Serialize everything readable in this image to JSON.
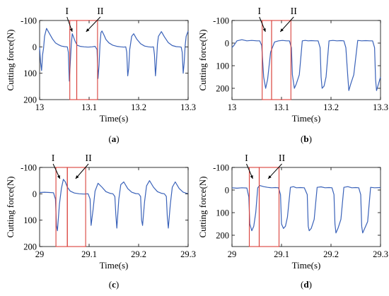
{
  "chart_data": [
    {
      "type": "line",
      "panel_label": "(a)",
      "xlabel": "Time(s)",
      "ylabel": "Cutting force(N)",
      "xlim": [
        13,
        13.3
      ],
      "ylim": [
        -100,
        200
      ],
      "y_inverted": true,
      "x_ticks": [
        "13",
        "13.1",
        "13.2",
        "13.3"
      ],
      "x_tick_values": [
        13,
        13.1,
        13.2,
        13.3
      ],
      "y_ticks": [
        "-100",
        "0",
        "100",
        "200"
      ],
      "y_tick_values": [
        -100,
        0,
        100,
        200
      ],
      "regions": [
        {
          "label": "I",
          "x_start": 13.061,
          "x_end": 13.075
        },
        {
          "label": "II",
          "x_start": 13.075,
          "x_end": 13.117
        }
      ],
      "series": [
        {
          "color": "#3a62b9",
          "x": [
            13.0,
            13.002,
            13.004,
            13.006,
            13.008,
            13.01,
            13.014,
            13.02,
            13.026,
            13.032,
            13.038,
            13.044,
            13.05,
            13.056,
            13.058,
            13.06,
            13.062,
            13.064,
            13.066,
            13.068,
            13.072,
            13.076,
            13.082,
            13.09,
            13.098,
            13.106,
            13.112,
            13.116,
            13.118,
            13.12,
            13.122,
            13.124,
            13.126,
            13.13,
            13.134,
            13.14,
            13.148,
            13.156,
            13.164,
            13.17,
            13.174,
            13.176,
            13.178,
            13.18,
            13.182,
            13.186,
            13.19,
            13.196,
            13.204,
            13.212,
            13.22,
            13.226,
            13.23,
            13.232,
            13.234,
            13.236,
            13.238,
            13.24,
            13.246,
            13.252,
            13.26,
            13.268,
            13.276,
            13.282,
            13.286,
            13.288,
            13.29,
            13.292,
            13.294,
            13.296,
            13.3
          ],
          "y": [
            2,
            60,
            90,
            30,
            5,
            -40,
            -70,
            -50,
            -30,
            -15,
            -8,
            -3,
            -1,
            0,
            20,
            130,
            60,
            -10,
            -50,
            -40,
            -20,
            -6,
            -2,
            0,
            1,
            0,
            -2,
            10,
            120,
            70,
            -10,
            -55,
            -60,
            -45,
            -28,
            -15,
            -6,
            -2,
            0,
            1,
            0,
            20,
            110,
            80,
            10,
            -40,
            -50,
            -30,
            -12,
            -3,
            0,
            1,
            0,
            30,
            110,
            60,
            -10,
            -40,
            -58,
            -38,
            -16,
            -5,
            -1,
            0,
            1,
            20,
            100,
            60,
            -5,
            -40,
            -60
          ]
        }
      ]
    },
    {
      "type": "line",
      "panel_label": "(b)",
      "xlabel": "Time(s)",
      "ylabel": "Cutting force(N)",
      "xlim": [
        13,
        13.3
      ],
      "ylim": [
        -100,
        250
      ],
      "y_inverted": true,
      "x_ticks": [
        "13",
        "13.1",
        "13.2",
        "13.3"
      ],
      "x_tick_values": [
        13,
        13.1,
        13.2,
        13.3
      ],
      "y_ticks": [
        "-100",
        "0",
        "100",
        "200"
      ],
      "y_tick_values": [
        -100,
        0,
        100,
        200
      ],
      "regions": [
        {
          "label": "I",
          "x_start": 13.061,
          "x_end": 13.08
        },
        {
          "label": "II",
          "x_start": 13.08,
          "x_end": 13.119
        }
      ],
      "series": [
        {
          "color": "#3a62b9",
          "x": [
            13.0,
            13.004,
            13.01,
            13.02,
            13.03,
            13.04,
            13.05,
            13.056,
            13.06,
            13.064,
            13.068,
            13.072,
            13.078,
            13.086,
            13.094,
            13.102,
            13.11,
            13.116,
            13.12,
            13.122,
            13.126,
            13.13,
            13.136,
            13.142,
            13.148,
            13.154,
            13.16,
            13.168,
            13.174,
            13.178,
            13.18,
            13.182,
            13.186,
            13.19,
            13.196,
            13.204,
            13.212,
            13.22,
            13.226,
            13.23,
            13.234,
            13.236,
            13.24,
            13.246,
            13.254,
            13.262,
            13.27,
            13.278,
            13.284,
            13.288,
            13.29,
            13.292,
            13.296,
            13.3
          ],
          "y": [
            20,
            10,
            -10,
            -15,
            -10,
            -12,
            -10,
            -10,
            10,
            150,
            200,
            160,
            40,
            -5,
            -10,
            -12,
            -10,
            -10,
            20,
            140,
            200,
            180,
            140,
            -10,
            -12,
            -10,
            -11,
            -10,
            -10,
            20,
            150,
            200,
            190,
            150,
            -10,
            -12,
            -10,
            -11,
            -10,
            20,
            150,
            210,
            180,
            140,
            -12,
            -10,
            -11,
            -10,
            -10,
            20,
            160,
            210,
            180,
            150
          ]
        }
      ]
    },
    {
      "type": "line",
      "panel_label": "(c)",
      "xlabel": "Time(s)",
      "ylabel": "Cutting force(N)",
      "xlim": [
        29,
        29.3
      ],
      "ylim": [
        -100,
        200
      ],
      "y_inverted": true,
      "x_ticks": [
        "29",
        "29.1",
        "29.2",
        "29.3"
      ],
      "x_tick_values": [
        29,
        29.1,
        29.2,
        29.3
      ],
      "y_ticks": [
        "-100",
        "0",
        "100",
        "200"
      ],
      "y_tick_values": [
        -100,
        0,
        100,
        200
      ],
      "regions": [
        {
          "label": "I",
          "x_start": 29.033,
          "x_end": 29.056
        },
        {
          "label": "II",
          "x_start": 29.056,
          "x_end": 29.093
        }
      ],
      "series": [
        {
          "color": "#3a62b9",
          "x": [
            29.0,
            29.01,
            29.02,
            29.028,
            29.032,
            29.034,
            29.036,
            29.04,
            29.044,
            29.048,
            29.052,
            29.056,
            29.062,
            29.07,
            29.08,
            29.09,
            29.098,
            29.102,
            29.104,
            29.108,
            29.112,
            29.118,
            29.126,
            29.134,
            29.142,
            29.148,
            29.152,
            29.154,
            29.156,
            29.16,
            29.164,
            29.17,
            29.178,
            29.186,
            29.194,
            29.2,
            29.204,
            29.206,
            29.208,
            29.212,
            29.216,
            29.222,
            29.23,
            29.238,
            29.246,
            29.252,
            29.256,
            29.258,
            29.26,
            29.264,
            29.268,
            29.274,
            29.282,
            29.29,
            29.3
          ],
          "y": [
            -5,
            -6,
            -5,
            -4,
            20,
            120,
            140,
            40,
            -20,
            -55,
            -45,
            -25,
            -10,
            -3,
            0,
            1,
            0,
            20,
            120,
            60,
            -10,
            -40,
            -25,
            -8,
            -2,
            0,
            10,
            80,
            130,
            20,
            -35,
            -45,
            -20,
            -6,
            -1,
            0,
            10,
            100,
            120,
            30,
            -30,
            -50,
            -25,
            -8,
            -2,
            0,
            10,
            90,
            130,
            40,
            -25,
            -45,
            -20,
            -6,
            0
          ]
        }
      ]
    },
    {
      "type": "line",
      "panel_label": "(d)",
      "xlabel": "Time(s)",
      "ylabel": "Cutting force(N)",
      "xlim": [
        29,
        29.3
      ],
      "ylim": [
        -100,
        250
      ],
      "y_inverted": true,
      "x_ticks": [
        "29",
        "29.1",
        "29.2",
        "29.3"
      ],
      "x_tick_values": [
        29,
        29.1,
        29.2,
        29.3
      ],
      "y_ticks": [
        "-100",
        "0",
        "100",
        "200"
      ],
      "y_tick_values": [
        -100,
        0,
        100,
        200
      ],
      "regions": [
        {
          "label": "I",
          "x_start": 29.035,
          "x_end": 29.055
        },
        {
          "label": "II",
          "x_start": 29.055,
          "x_end": 29.095
        }
      ],
      "series": [
        {
          "color": "#3a62b9",
          "x": [
            29.0,
            29.01,
            29.02,
            29.03,
            29.034,
            29.036,
            29.04,
            29.044,
            29.048,
            29.052,
            29.056,
            29.064,
            29.072,
            29.08,
            29.088,
            29.094,
            29.098,
            29.1,
            29.104,
            29.108,
            29.112,
            29.118,
            29.124,
            29.13,
            29.138,
            29.146,
            29.152,
            29.154,
            29.156,
            29.16,
            29.166,
            29.172,
            29.18,
            29.188,
            29.196,
            29.202,
            29.206,
            29.208,
            29.21,
            29.214,
            29.22,
            29.226,
            29.234,
            29.242,
            29.25,
            29.256,
            29.26,
            29.262,
            29.264,
            29.268,
            29.274,
            29.28,
            29.288,
            29.3
          ],
          "y": [
            -10,
            -8,
            -10,
            -9,
            30,
            150,
            180,
            160,
            100,
            -10,
            -20,
            -15,
            -12,
            -10,
            -11,
            -10,
            20,
            150,
            170,
            160,
            120,
            -12,
            -15,
            -10,
            -11,
            -10,
            20,
            160,
            180,
            170,
            130,
            -12,
            -14,
            -10,
            -11,
            -10,
            20,
            150,
            190,
            170,
            130,
            -12,
            -15,
            -10,
            -11,
            -10,
            20,
            160,
            190,
            170,
            140,
            -12,
            -10,
            -11
          ]
        }
      ]
    }
  ]
}
